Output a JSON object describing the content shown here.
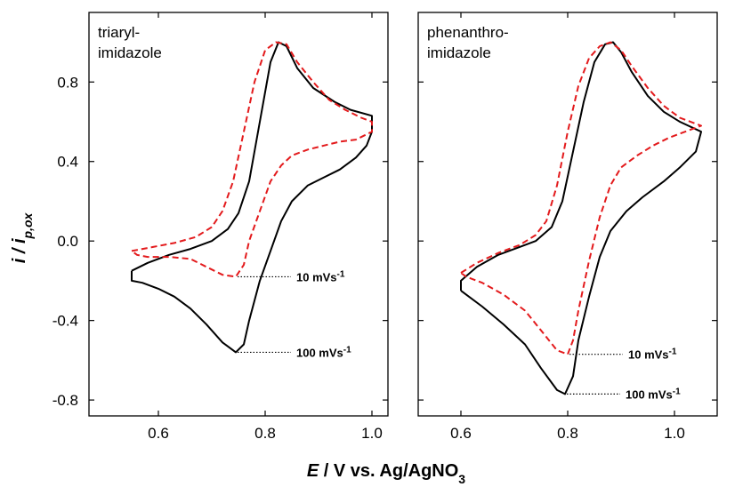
{
  "chart_data": [
    {
      "type": "line",
      "panel_label": [
        "triaryl-",
        "imidazole"
      ],
      "xlim": [
        0.47,
        1.03
      ],
      "ylim": [
        -0.88,
        1.15
      ],
      "x_ticks": [
        0.6,
        0.8,
        1.0
      ],
      "x_tick_labels": [
        "0.6",
        "0.8",
        "1.0"
      ],
      "y_ticks": [
        0.8,
        0.4,
        0.0,
        -0.4,
        -0.8
      ],
      "y_tick_labels": [
        "0.8",
        "0.4",
        "0.0",
        "-0.4",
        "-0.8"
      ],
      "series": [
        {
          "name": "100 mVs-1",
          "color": "#000000",
          "dash": "solid",
          "points": [
            [
              0.55,
              -0.15
            ],
            [
              0.58,
              -0.11
            ],
            [
              0.62,
              -0.07
            ],
            [
              0.66,
              -0.04
            ],
            [
              0.7,
              0.0
            ],
            [
              0.73,
              0.06
            ],
            [
              0.75,
              0.14
            ],
            [
              0.77,
              0.3
            ],
            [
              0.79,
              0.6
            ],
            [
              0.81,
              0.9
            ],
            [
              0.825,
              1.0
            ],
            [
              0.84,
              0.98
            ],
            [
              0.86,
              0.87
            ],
            [
              0.89,
              0.77
            ],
            [
              0.93,
              0.7
            ],
            [
              0.96,
              0.66
            ],
            [
              1.0,
              0.63
            ],
            [
              1.0,
              0.55
            ],
            [
              0.99,
              0.48
            ],
            [
              0.97,
              0.42
            ],
            [
              0.94,
              0.36
            ],
            [
              0.91,
              0.32
            ],
            [
              0.88,
              0.28
            ],
            [
              0.85,
              0.2
            ],
            [
              0.83,
              0.1
            ],
            [
              0.81,
              -0.05
            ],
            [
              0.79,
              -0.2
            ],
            [
              0.77,
              -0.4
            ],
            [
              0.76,
              -0.52
            ],
            [
              0.745,
              -0.56
            ],
            [
              0.72,
              -0.51
            ],
            [
              0.69,
              -0.42
            ],
            [
              0.66,
              -0.34
            ],
            [
              0.63,
              -0.28
            ],
            [
              0.6,
              -0.24
            ],
            [
              0.57,
              -0.21
            ],
            [
              0.55,
              -0.2
            ],
            [
              0.55,
              -0.15
            ]
          ]
        },
        {
          "name": "10 mVs-1",
          "color": "#e31a1c",
          "dash": "dashed",
          "points": [
            [
              0.55,
              -0.05
            ],
            [
              0.59,
              -0.03
            ],
            [
              0.63,
              -0.01
            ],
            [
              0.67,
              0.02
            ],
            [
              0.7,
              0.07
            ],
            [
              0.72,
              0.15
            ],
            [
              0.74,
              0.3
            ],
            [
              0.76,
              0.55
            ],
            [
              0.78,
              0.8
            ],
            [
              0.8,
              0.96
            ],
            [
              0.82,
              1.0
            ],
            [
              0.84,
              0.99
            ],
            [
              0.86,
              0.9
            ],
            [
              0.89,
              0.8
            ],
            [
              0.92,
              0.71
            ],
            [
              0.95,
              0.66
            ],
            [
              0.98,
              0.62
            ],
            [
              1.0,
              0.6
            ],
            [
              1.0,
              0.55
            ],
            [
              0.97,
              0.51
            ],
            [
              0.94,
              0.5
            ],
            [
              0.91,
              0.48
            ],
            [
              0.88,
              0.46
            ],
            [
              0.85,
              0.43
            ],
            [
              0.83,
              0.38
            ],
            [
              0.81,
              0.3
            ],
            [
              0.79,
              0.15
            ],
            [
              0.77,
              0.0
            ],
            [
              0.76,
              -0.12
            ],
            [
              0.745,
              -0.18
            ],
            [
              0.72,
              -0.17
            ],
            [
              0.69,
              -0.13
            ],
            [
              0.66,
              -0.09
            ],
            [
              0.62,
              -0.08
            ],
            [
              0.58,
              -0.08
            ],
            [
              0.56,
              -0.07
            ],
            [
              0.55,
              -0.05
            ]
          ]
        }
      ],
      "annotations": [
        {
          "text": "10 mVs",
          "sup": "-1",
          "x": 0.745,
          "y": -0.18
        },
        {
          "text": "100 mVs",
          "sup": "-1",
          "x": 0.745,
          "y": -0.56
        }
      ]
    },
    {
      "type": "line",
      "panel_label": [
        "phenanthro-",
        "imidazole"
      ],
      "xlim": [
        0.52,
        1.08
      ],
      "ylim": [
        -0.88,
        1.15
      ],
      "x_ticks": [
        0.6,
        0.8,
        1.0
      ],
      "x_tick_labels": [
        "0.6",
        "0.8",
        "1.0"
      ],
      "y_ticks": [
        0.8,
        0.4,
        0.0,
        -0.4,
        -0.8
      ],
      "y_tick_labels": [
        "0.8",
        "0.4",
        "0.0",
        "-0.4",
        "-0.8"
      ],
      "series": [
        {
          "name": "100 mVs-1",
          "color": "#000000",
          "dash": "solid",
          "points": [
            [
              0.6,
              -0.25
            ],
            [
              0.6,
              -0.2
            ],
            [
              0.63,
              -0.13
            ],
            [
              0.67,
              -0.07
            ],
            [
              0.71,
              -0.03
            ],
            [
              0.74,
              0.0
            ],
            [
              0.77,
              0.07
            ],
            [
              0.79,
              0.2
            ],
            [
              0.81,
              0.45
            ],
            [
              0.83,
              0.7
            ],
            [
              0.85,
              0.9
            ],
            [
              0.87,
              0.99
            ],
            [
              0.885,
              1.0
            ],
            [
              0.9,
              0.95
            ],
            [
              0.92,
              0.85
            ],
            [
              0.95,
              0.73
            ],
            [
              0.98,
              0.65
            ],
            [
              1.01,
              0.6
            ],
            [
              1.05,
              0.55
            ],
            [
              1.04,
              0.45
            ],
            [
              1.01,
              0.37
            ],
            [
              0.98,
              0.3
            ],
            [
              0.94,
              0.22
            ],
            [
              0.91,
              0.15
            ],
            [
              0.88,
              0.05
            ],
            [
              0.86,
              -0.08
            ],
            [
              0.84,
              -0.28
            ],
            [
              0.82,
              -0.5
            ],
            [
              0.81,
              -0.68
            ],
            [
              0.795,
              -0.77
            ],
            [
              0.78,
              -0.75
            ],
            [
              0.75,
              -0.64
            ],
            [
              0.72,
              -0.52
            ],
            [
              0.68,
              -0.42
            ],
            [
              0.64,
              -0.33
            ],
            [
              0.61,
              -0.27
            ],
            [
              0.6,
              -0.25
            ]
          ]
        },
        {
          "name": "10 mVs-1",
          "color": "#e31a1c",
          "dash": "dashed",
          "points": [
            [
              0.6,
              -0.16
            ],
            [
              0.63,
              -0.11
            ],
            [
              0.67,
              -0.06
            ],
            [
              0.71,
              -0.02
            ],
            [
              0.74,
              0.03
            ],
            [
              0.76,
              0.1
            ],
            [
              0.78,
              0.28
            ],
            [
              0.8,
              0.55
            ],
            [
              0.82,
              0.78
            ],
            [
              0.84,
              0.92
            ],
            [
              0.86,
              0.98
            ],
            [
              0.88,
              1.0
            ],
            [
              0.9,
              0.96
            ],
            [
              0.92,
              0.88
            ],
            [
              0.95,
              0.77
            ],
            [
              0.98,
              0.68
            ],
            [
              1.01,
              0.62
            ],
            [
              1.05,
              0.58
            ],
            [
              1.02,
              0.55
            ],
            [
              0.99,
              0.52
            ],
            [
              0.96,
              0.48
            ],
            [
              0.93,
              0.43
            ],
            [
              0.9,
              0.37
            ],
            [
              0.88,
              0.28
            ],
            [
              0.86,
              0.12
            ],
            [
              0.84,
              -0.1
            ],
            [
              0.82,
              -0.35
            ],
            [
              0.81,
              -0.5
            ],
            [
              0.8,
              -0.57
            ],
            [
              0.78,
              -0.55
            ],
            [
              0.75,
              -0.45
            ],
            [
              0.72,
              -0.35
            ],
            [
              0.68,
              -0.27
            ],
            [
              0.64,
              -0.21
            ],
            [
              0.61,
              -0.18
            ],
            [
              0.6,
              -0.16
            ]
          ]
        }
      ],
      "annotations": [
        {
          "text": "10 mVs",
          "sup": "-1",
          "x": 0.8,
          "y": -0.57
        },
        {
          "text": "100 mVs",
          "sup": "-1",
          "x": 0.795,
          "y": -0.77
        }
      ]
    }
  ],
  "y_axis_title": {
    "main": "i / i",
    "sub": "p,ox"
  },
  "x_axis_title": {
    "italic": "E",
    "rest": " / V vs. Ag/AgNO",
    "sub": "3"
  }
}
